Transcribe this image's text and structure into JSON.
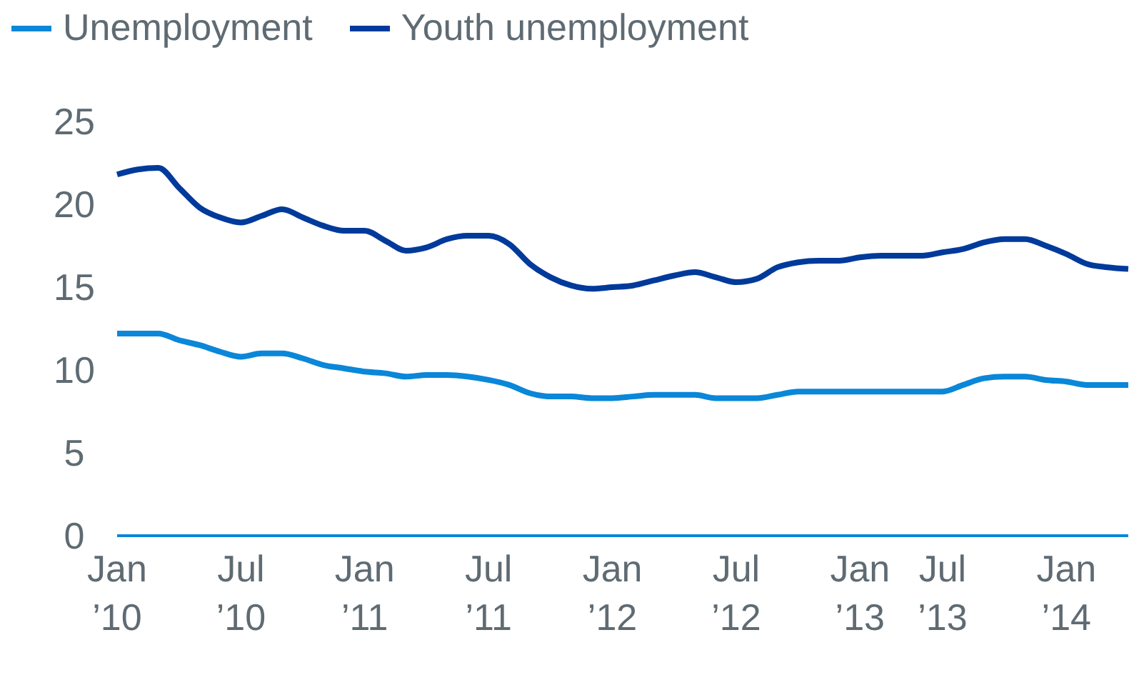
{
  "chart_data": {
    "type": "line",
    "categories": [
      "Jan ’10",
      null,
      null,
      null,
      null,
      null,
      "Jul ’10",
      null,
      null,
      null,
      null,
      null,
      "Jan ’11",
      null,
      null,
      null,
      null,
      null,
      "Jul ’11",
      null,
      null,
      null,
      null,
      null,
      "Jan ’12",
      null,
      null,
      null,
      null,
      null,
      "Jul ’12",
      null,
      null,
      null,
      null,
      null,
      "Jan ’13",
      null,
      null,
      null,
      "Jul ’13",
      null,
      null,
      null,
      null,
      null,
      "Jan ’14",
      null,
      null,
      null
    ],
    "series": [
      {
        "name": "Unemployment",
        "color": "#0a87d8",
        "values": [
          12.2,
          12.2,
          12.2,
          11.8,
          11.5,
          11.1,
          10.8,
          11.0,
          11.0,
          10.7,
          10.3,
          10.1,
          9.9,
          9.8,
          9.6,
          9.7,
          9.7,
          9.6,
          9.4,
          9.1,
          8.6,
          8.4,
          8.4,
          8.3,
          8.3,
          8.4,
          8.5,
          8.5,
          8.5,
          8.3,
          8.3,
          8.3,
          8.5,
          8.7,
          8.7,
          8.7,
          8.7,
          8.7,
          8.7,
          8.7,
          8.7,
          9.1,
          9.5,
          9.6,
          9.6,
          9.4,
          9.3,
          9.1,
          9.1,
          9.1
        ]
      },
      {
        "name": "Youth unemployment",
        "color": "#003a9b",
        "values": [
          21.8,
          22.1,
          22.2,
          21.0,
          19.8,
          19.2,
          18.9,
          19.3,
          19.7,
          19.2,
          18.7,
          18.4,
          18.4,
          17.8,
          17.2,
          17.4,
          17.9,
          18.1,
          18.1,
          17.6,
          16.4,
          15.6,
          15.1,
          14.9,
          15.0,
          15.1,
          15.4,
          15.7,
          15.9,
          15.6,
          15.3,
          15.5,
          16.2,
          16.5,
          16.6,
          16.6,
          16.8,
          16.9,
          16.9,
          16.9,
          17.1,
          17.3,
          17.7,
          17.9,
          17.9,
          17.5,
          17.0,
          16.4,
          16.2,
          16.1
        ]
      }
    ],
    "ylim": [
      0,
      25
    ],
    "yticks": [
      0,
      5,
      10,
      15,
      20,
      25
    ],
    "grid": false,
    "legend": "top left",
    "marker": "none",
    "line_style": "solid"
  }
}
